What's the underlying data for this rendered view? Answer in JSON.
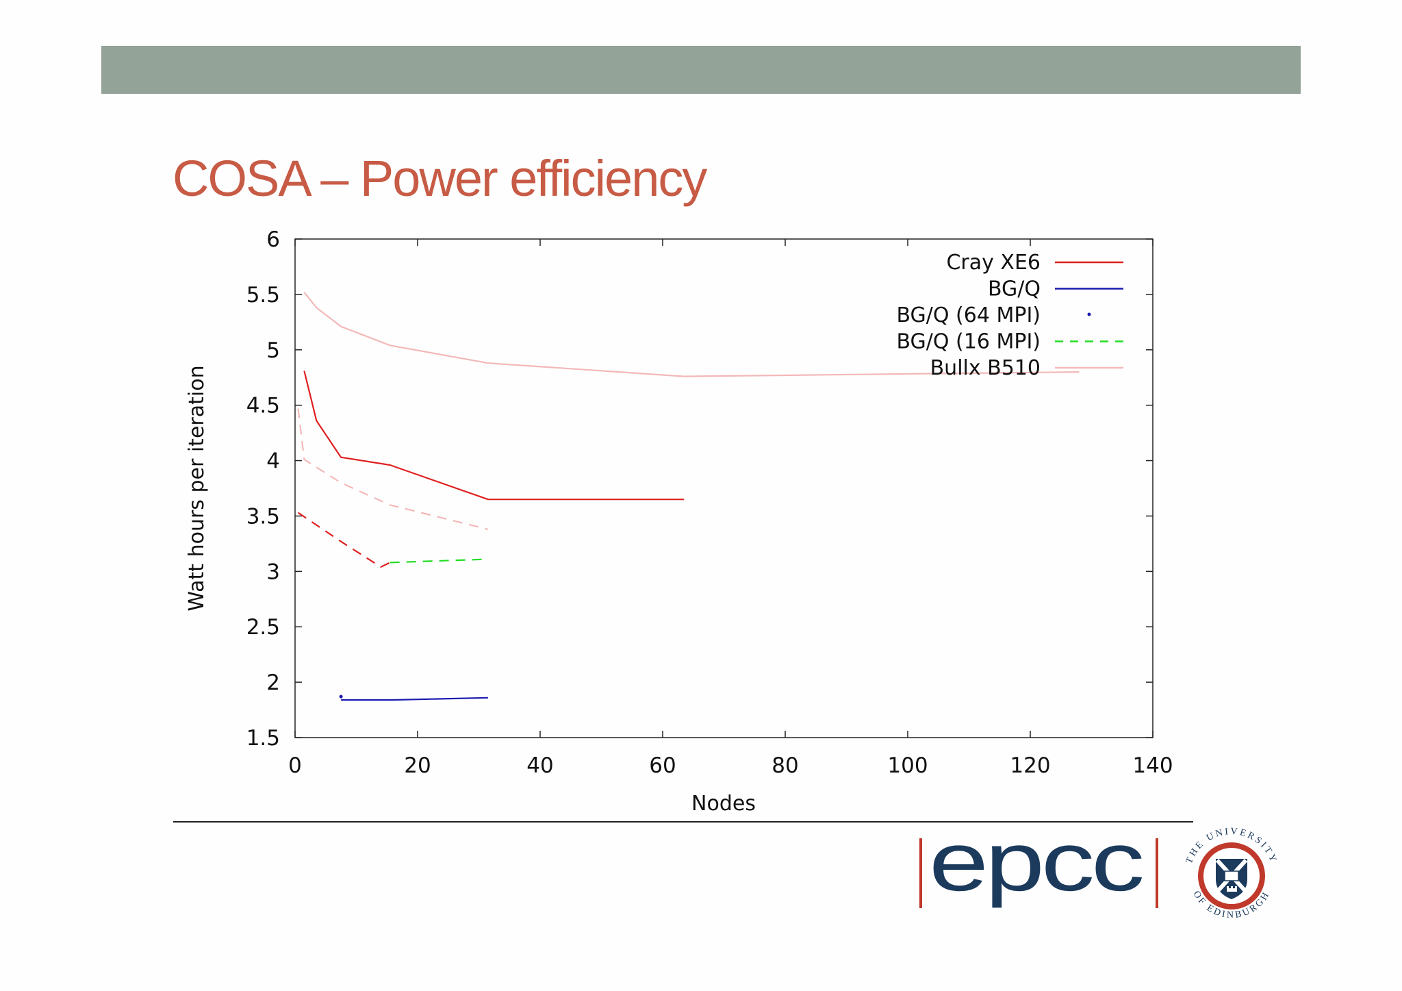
{
  "slide": {
    "title": "COSA – Power efficiency"
  },
  "logo": {
    "text": "epcc",
    "color": "#1b3a5c",
    "bar_color": "#c0392b"
  },
  "crest": {
    "name": "The University of Edinburgh",
    "arc_top": "THE UNIVERSITY",
    "arc_bottom": "OF EDINBURGH",
    "colors": {
      "ring": "#c0392b",
      "shield": "#1b3a5c"
    }
  },
  "chart_data": {
    "type": "line",
    "title": "",
    "xlabel": "Nodes",
    "ylabel": "Watt hours per iteration",
    "xlim": [
      0,
      140
    ],
    "ylim": [
      1.5,
      6
    ],
    "xticks": [
      0,
      20,
      40,
      60,
      80,
      100,
      120,
      140
    ],
    "yticks": [
      1.5,
      2,
      2.5,
      3,
      3.5,
      4,
      4.5,
      5,
      5.5,
      6
    ],
    "ytick_labels": [
      "1.5",
      "2",
      "2.5",
      "3",
      "3.5",
      "4",
      "4.5",
      "5",
      "5.5",
      "6"
    ],
    "grid": false,
    "legend_position": "top-right",
    "series": [
      {
        "name": "Cray XE6",
        "color": "#e02020",
        "style": "solid",
        "in_legend": true,
        "points": [
          [
            1.5,
            4.81
          ],
          [
            3.5,
            4.36
          ],
          [
            7.5,
            4.03
          ],
          [
            15.5,
            3.96
          ],
          [
            31.5,
            3.65
          ],
          [
            48,
            3.65
          ],
          [
            63.5,
            3.65
          ]
        ]
      },
      {
        "name": "BG/Q",
        "color": "#1a1ab0",
        "style": "solid",
        "in_legend": true,
        "points": [
          [
            7.5,
            1.84
          ],
          [
            16,
            1.84
          ],
          [
            31.5,
            1.86
          ]
        ]
      },
      {
        "name": "BG/Q (64 MPI)",
        "color": "#1a1ab0",
        "style": "point",
        "in_legend": true,
        "points": [
          [
            7.5,
            1.87
          ]
        ]
      },
      {
        "name": "BG/Q (16 MPI)",
        "color": "#22dd22",
        "style": "dashed",
        "in_legend": true,
        "points": [
          [
            15.5,
            3.08
          ],
          [
            31.5,
            3.11
          ]
        ]
      },
      {
        "name": "Bullx B510",
        "color": "#f4b8b8",
        "style": "solid",
        "in_legend": true,
        "points": [
          [
            1.5,
            5.52
          ],
          [
            3.5,
            5.38
          ],
          [
            7.5,
            5.21
          ],
          [
            15.5,
            5.04
          ],
          [
            31.5,
            4.88
          ],
          [
            63.5,
            4.76
          ],
          [
            128,
            4.8
          ]
        ]
      },
      {
        "name": "",
        "color": "#f4b8b8",
        "style": "dashed",
        "in_legend": false,
        "points": [
          [
            0.5,
            4.47
          ],
          [
            1.5,
            4.01
          ],
          [
            7.5,
            3.8
          ],
          [
            15.5,
            3.6
          ],
          [
            31.5,
            3.38
          ]
        ]
      },
      {
        "name": "",
        "color": "#e02020",
        "style": "dashed",
        "in_legend": false,
        "points": [
          [
            0.5,
            3.53
          ],
          [
            7.5,
            3.27
          ],
          [
            14,
            3.04
          ],
          [
            15.5,
            3.08
          ]
        ]
      }
    ]
  }
}
